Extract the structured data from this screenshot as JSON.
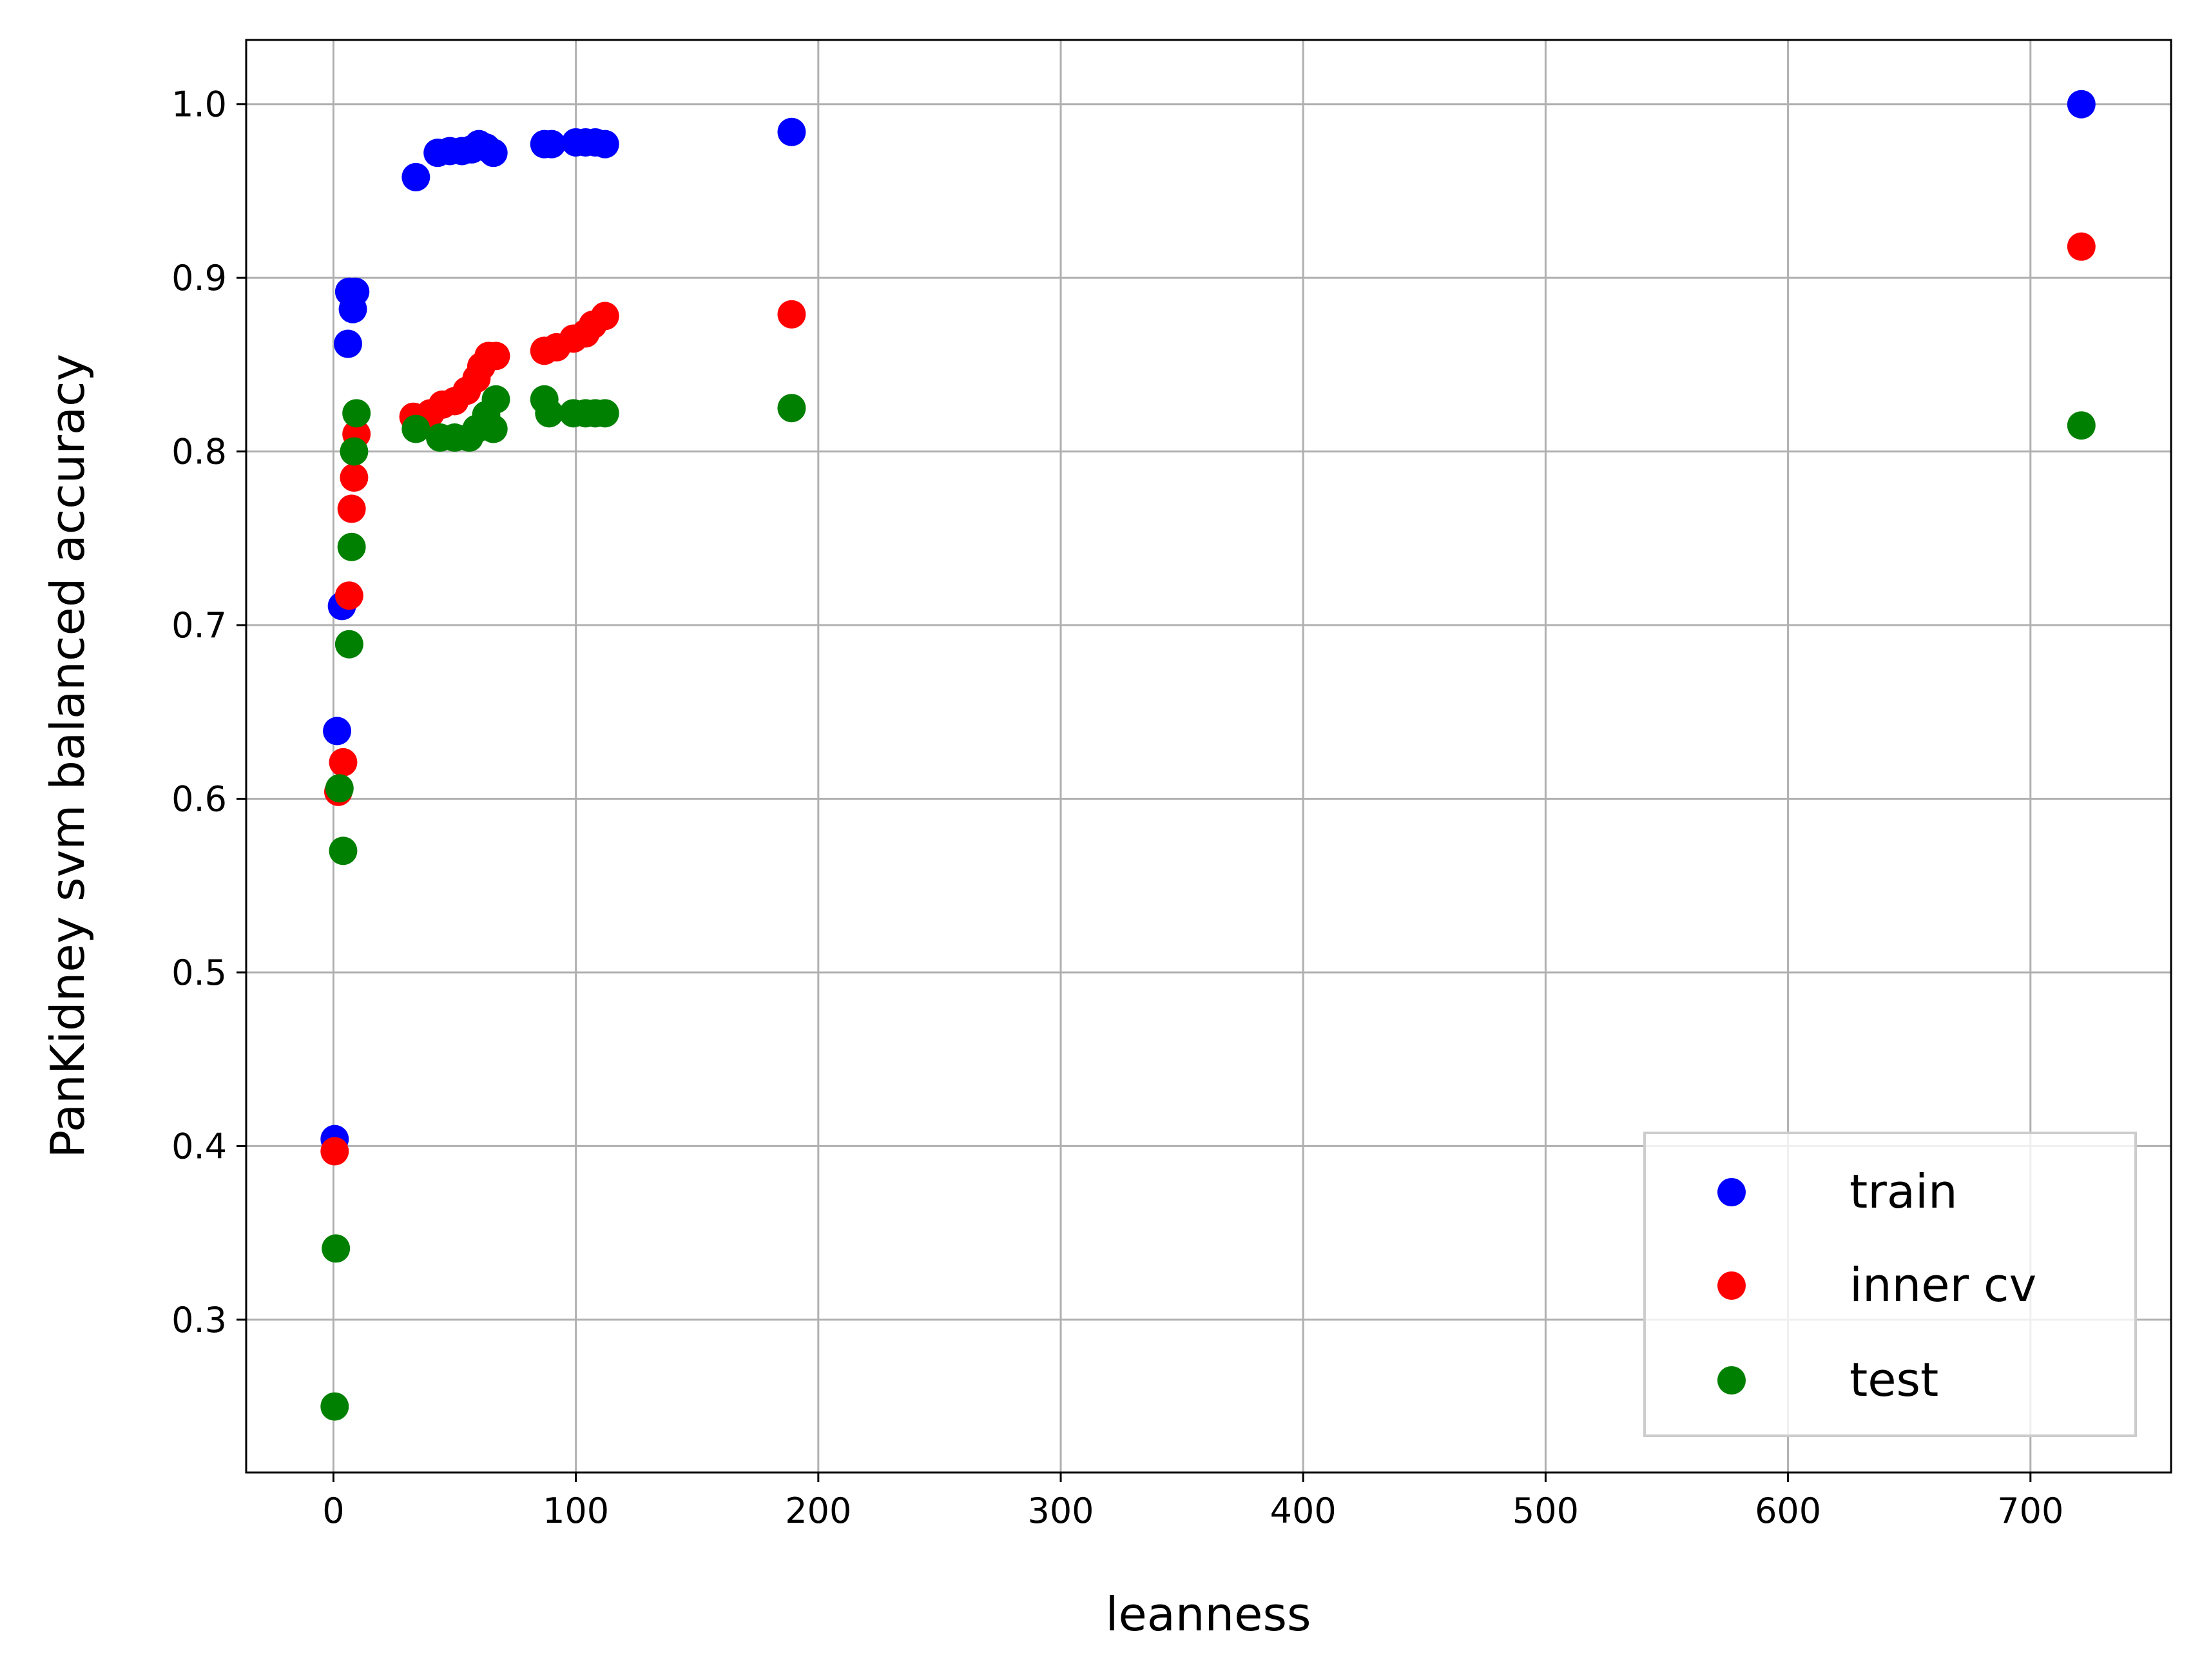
{
  "chart_data": {
    "type": "scatter",
    "xlabel": "leanness",
    "ylabel": "PanKidney svm balanced accuracy",
    "xlim": [
      -36,
      758
    ],
    "ylim": [
      0.212,
      1.037
    ],
    "xticks": [
      0,
      100,
      200,
      300,
      400,
      500,
      600,
      700
    ],
    "yticks": [
      0.3,
      0.4,
      0.5,
      0.6,
      0.7,
      0.8,
      0.9,
      1.0
    ],
    "xtick_labels": [
      "0",
      "100",
      "200",
      "300",
      "400",
      "500",
      "600",
      "700"
    ],
    "ytick_labels": [
      "0.3",
      "0.4",
      "0.5",
      "0.6",
      "0.7",
      "0.8",
      "0.9",
      "1.0"
    ],
    "grid": true,
    "legend_position": "bottom-right",
    "series": [
      {
        "name": "train",
        "color": "#0000ff",
        "points": [
          [
            0.5,
            0.404
          ],
          [
            1.5,
            0.639
          ],
          [
            3.5,
            0.711
          ],
          [
            6,
            0.862
          ],
          [
            6.5,
            0.892
          ],
          [
            8,
            0.882
          ],
          [
            9,
            0.892
          ],
          [
            34,
            0.958
          ],
          [
            43,
            0.972
          ],
          [
            48,
            0.973
          ],
          [
            53,
            0.973
          ],
          [
            57,
            0.974
          ],
          [
            60,
            0.977
          ],
          [
            63,
            0.975
          ],
          [
            66,
            0.972
          ],
          [
            87,
            0.977
          ],
          [
            90,
            0.977
          ],
          [
            100,
            0.978
          ],
          [
            104,
            0.978
          ],
          [
            108,
            0.978
          ],
          [
            112,
            0.977
          ],
          [
            189,
            0.984
          ],
          [
            721,
            1.0
          ]
        ]
      },
      {
        "name": "inner cv",
        "color": "#ff0000",
        "points": [
          [
            0.5,
            0.397
          ],
          [
            2,
            0.604
          ],
          [
            4,
            0.621
          ],
          [
            6.5,
            0.717
          ],
          [
            7.5,
            0.767
          ],
          [
            8.5,
            0.785
          ],
          [
            9.5,
            0.81
          ],
          [
            33,
            0.82
          ],
          [
            40,
            0.822
          ],
          [
            45,
            0.827
          ],
          [
            50,
            0.829
          ],
          [
            55,
            0.835
          ],
          [
            59,
            0.842
          ],
          [
            61,
            0.849
          ],
          [
            64,
            0.855
          ],
          [
            67,
            0.855
          ],
          [
            87,
            0.858
          ],
          [
            92,
            0.86
          ],
          [
            99,
            0.865
          ],
          [
            104,
            0.868
          ],
          [
            107,
            0.873
          ],
          [
            112,
            0.878
          ],
          [
            189,
            0.879
          ],
          [
            721,
            0.918
          ]
        ]
      },
      {
        "name": "test",
        "color": "#008000",
        "points": [
          [
            0.5,
            0.25
          ],
          [
            1,
            0.341
          ],
          [
            2.5,
            0.606
          ],
          [
            4,
            0.57
          ],
          [
            6.5,
            0.689
          ],
          [
            7.5,
            0.745
          ],
          [
            8.5,
            0.8
          ],
          [
            9.5,
            0.822
          ],
          [
            34,
            0.813
          ],
          [
            44,
            0.808
          ],
          [
            50,
            0.808
          ],
          [
            56,
            0.808
          ],
          [
            59,
            0.813
          ],
          [
            63,
            0.821
          ],
          [
            66,
            0.813
          ],
          [
            67,
            0.83
          ],
          [
            87,
            0.83
          ],
          [
            89,
            0.822
          ],
          [
            99,
            0.822
          ],
          [
            104,
            0.822
          ],
          [
            108,
            0.822
          ],
          [
            112,
            0.822
          ],
          [
            189,
            0.825
          ],
          [
            721,
            0.815
          ]
        ]
      }
    ]
  }
}
